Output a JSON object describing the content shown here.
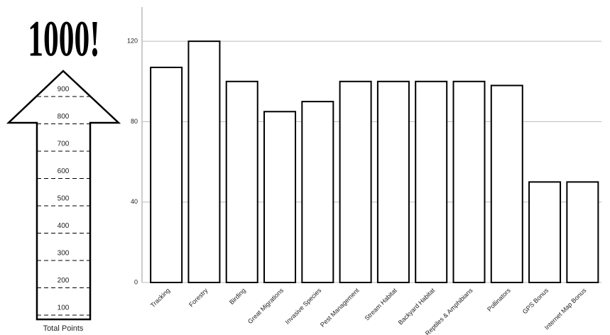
{
  "progress": {
    "title": "1000!",
    "ticks": [
      100,
      200,
      300,
      400,
      500,
      600,
      700,
      800,
      900
    ],
    "label": "Total Points"
  },
  "chart_data": {
    "type": "bar",
    "categories": [
      "Tracking",
      "Forestry",
      "Birding",
      "Great Migrations",
      "Invasive Species",
      "Pest Management",
      "Stream Habitat",
      "Backyard Habitat",
      "Reptiles & Amphibians",
      "Pollinators",
      "GPS Bonus",
      "Internet Map Bonus"
    ],
    "values": [
      107,
      120,
      100,
      85,
      90,
      100,
      100,
      100,
      100,
      98,
      50,
      50
    ],
    "color": "#ffffff",
    "ylim": [
      0,
      137
    ],
    "yticks": [
      0,
      40,
      80,
      120
    ],
    "grid": true
  }
}
